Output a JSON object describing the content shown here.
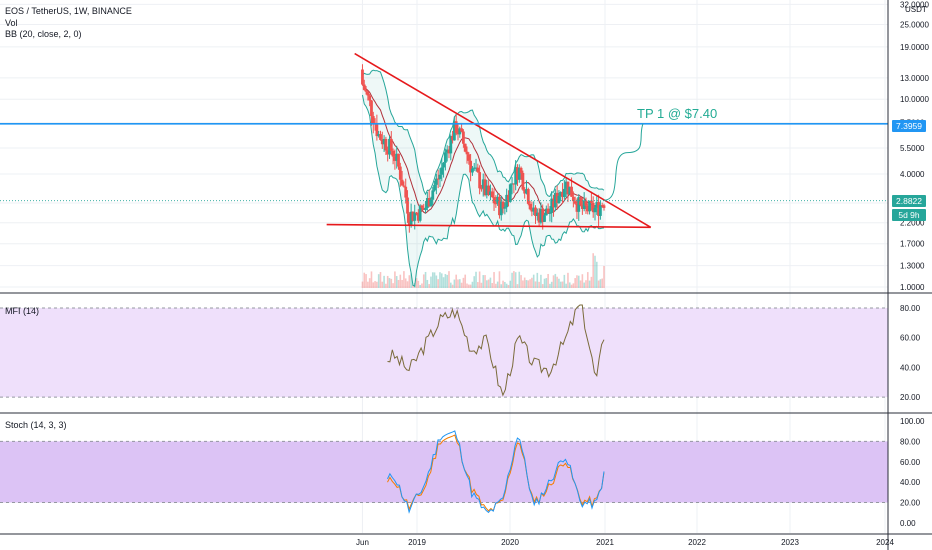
{
  "header": {
    "symbol_line": "EOS / TetherUS, 1W, BINANCE",
    "vol_label": "Vol",
    "bb_label": "BB (20, close, 2, 0)"
  },
  "panes": {
    "mfi_label": "MFI (14)",
    "stoch_label": "Stoch (14, 3, 3)"
  },
  "price_axis": {
    "currency": "USDT",
    "ticks": [
      "32.0000",
      "25.0000",
      "19.0000",
      "13.0000",
      "10.0000",
      "7.5000",
      "5.5000",
      "4.0000",
      "2.8000",
      "2.2000",
      "1.7000",
      "1.3000",
      "1.0000"
    ]
  },
  "time_axis": {
    "labels": [
      "Jun",
      "2019",
      "2020",
      "2021",
      "2022",
      "2023",
      "2024"
    ]
  },
  "annotations": {
    "target_label": "TP 1 @ $7.40",
    "target_price_tag": "7.3959",
    "last_price_tag": "2.8822",
    "countdown_tag": "5d 9h"
  },
  "colors": {
    "up": "#26a69a",
    "down": "#ef5350",
    "trendline": "#e6191c",
    "target_line": "#2196f3",
    "bb_band": "#26a69a",
    "bb_basis": "#b0303a",
    "mfi_line": "#7a6a3a",
    "mfi_bg": "#efe0fb",
    "stoch_bg": "#dcc3f5",
    "stoch_k": "#2196f3",
    "stoch_d": "#f57c00",
    "tp_text": "#22ab94"
  },
  "chart_data": [
    {
      "type": "candlestick",
      "title": "EOS / TetherUS, 1W, BINANCE",
      "y_scale": "log",
      "ylim": [
        1.0,
        32.0
      ],
      "x": [
        "2018-06",
        "2018-08",
        "2018-10",
        "2018-12",
        "2019-02",
        "2019-04",
        "2019-06",
        "2019-08",
        "2019-10",
        "2019-12",
        "2020-02",
        "2020-04",
        "2020-06",
        "2020-08",
        "2020-10",
        "2020-12",
        "2021-01"
      ],
      "close": [
        12.0,
        6.5,
        5.2,
        2.4,
        2.6,
        4.0,
        7.2,
        4.3,
        3.1,
        2.6,
        4.3,
        2.4,
        2.5,
        3.6,
        2.6,
        2.6,
        2.88
      ],
      "last_price": 2.8822,
      "target": 7.3959,
      "triangle": {
        "upper": [
          {
            "x": "2018-05",
            "y": 17.5
          },
          {
            "x": "2021-07",
            "y": 2.08
          }
        ],
        "lower": [
          {
            "x": "2018-05",
            "y": 2.15
          },
          {
            "x": "2021-07",
            "y": 2.08
          }
        ]
      },
      "projection": [
        {
          "x": "2021-01",
          "y": 2.9
        },
        {
          "x": "2021-04",
          "y": 5.2
        },
        {
          "x": "2021-06",
          "y": 7.4
        }
      ]
    },
    {
      "type": "line",
      "name": "MFI (14)",
      "ylim": [
        14,
        84
      ],
      "ticks": [
        20,
        40,
        60,
        80
      ],
      "bands": [
        20,
        80
      ],
      "x": [
        "2018-06",
        "2018-08",
        "2018-10",
        "2018-12",
        "2019-02",
        "2019-04",
        "2019-06",
        "2019-08",
        "2019-10",
        "2019-12",
        "2020-02",
        "2020-04",
        "2020-06",
        "2020-08",
        "2020-10",
        "2020-12",
        "2021-01"
      ],
      "values": [
        36,
        42,
        48,
        38,
        55,
        72,
        78,
        52,
        58,
        20,
        60,
        42,
        38,
        58,
        85,
        30,
        62
      ]
    },
    {
      "type": "line",
      "name": "Stoch (14, 3, 3)",
      "ylim": [
        -4,
        100
      ],
      "ticks": [
        0,
        20,
        40,
        60,
        80,
        100
      ],
      "bands": [
        20,
        80
      ],
      "series": [
        {
          "name": "%K",
          "values": [
            15,
            32,
            48,
            12,
            38,
            86,
            88,
            30,
            8,
            22,
            90,
            15,
            40,
            68,
            20,
            18,
            47
          ]
        },
        {
          "name": "%D",
          "values": [
            17,
            30,
            44,
            15,
            34,
            82,
            84,
            34,
            10,
            20,
            85,
            18,
            36,
            64,
            22,
            20,
            46
          ]
        }
      ]
    }
  ]
}
